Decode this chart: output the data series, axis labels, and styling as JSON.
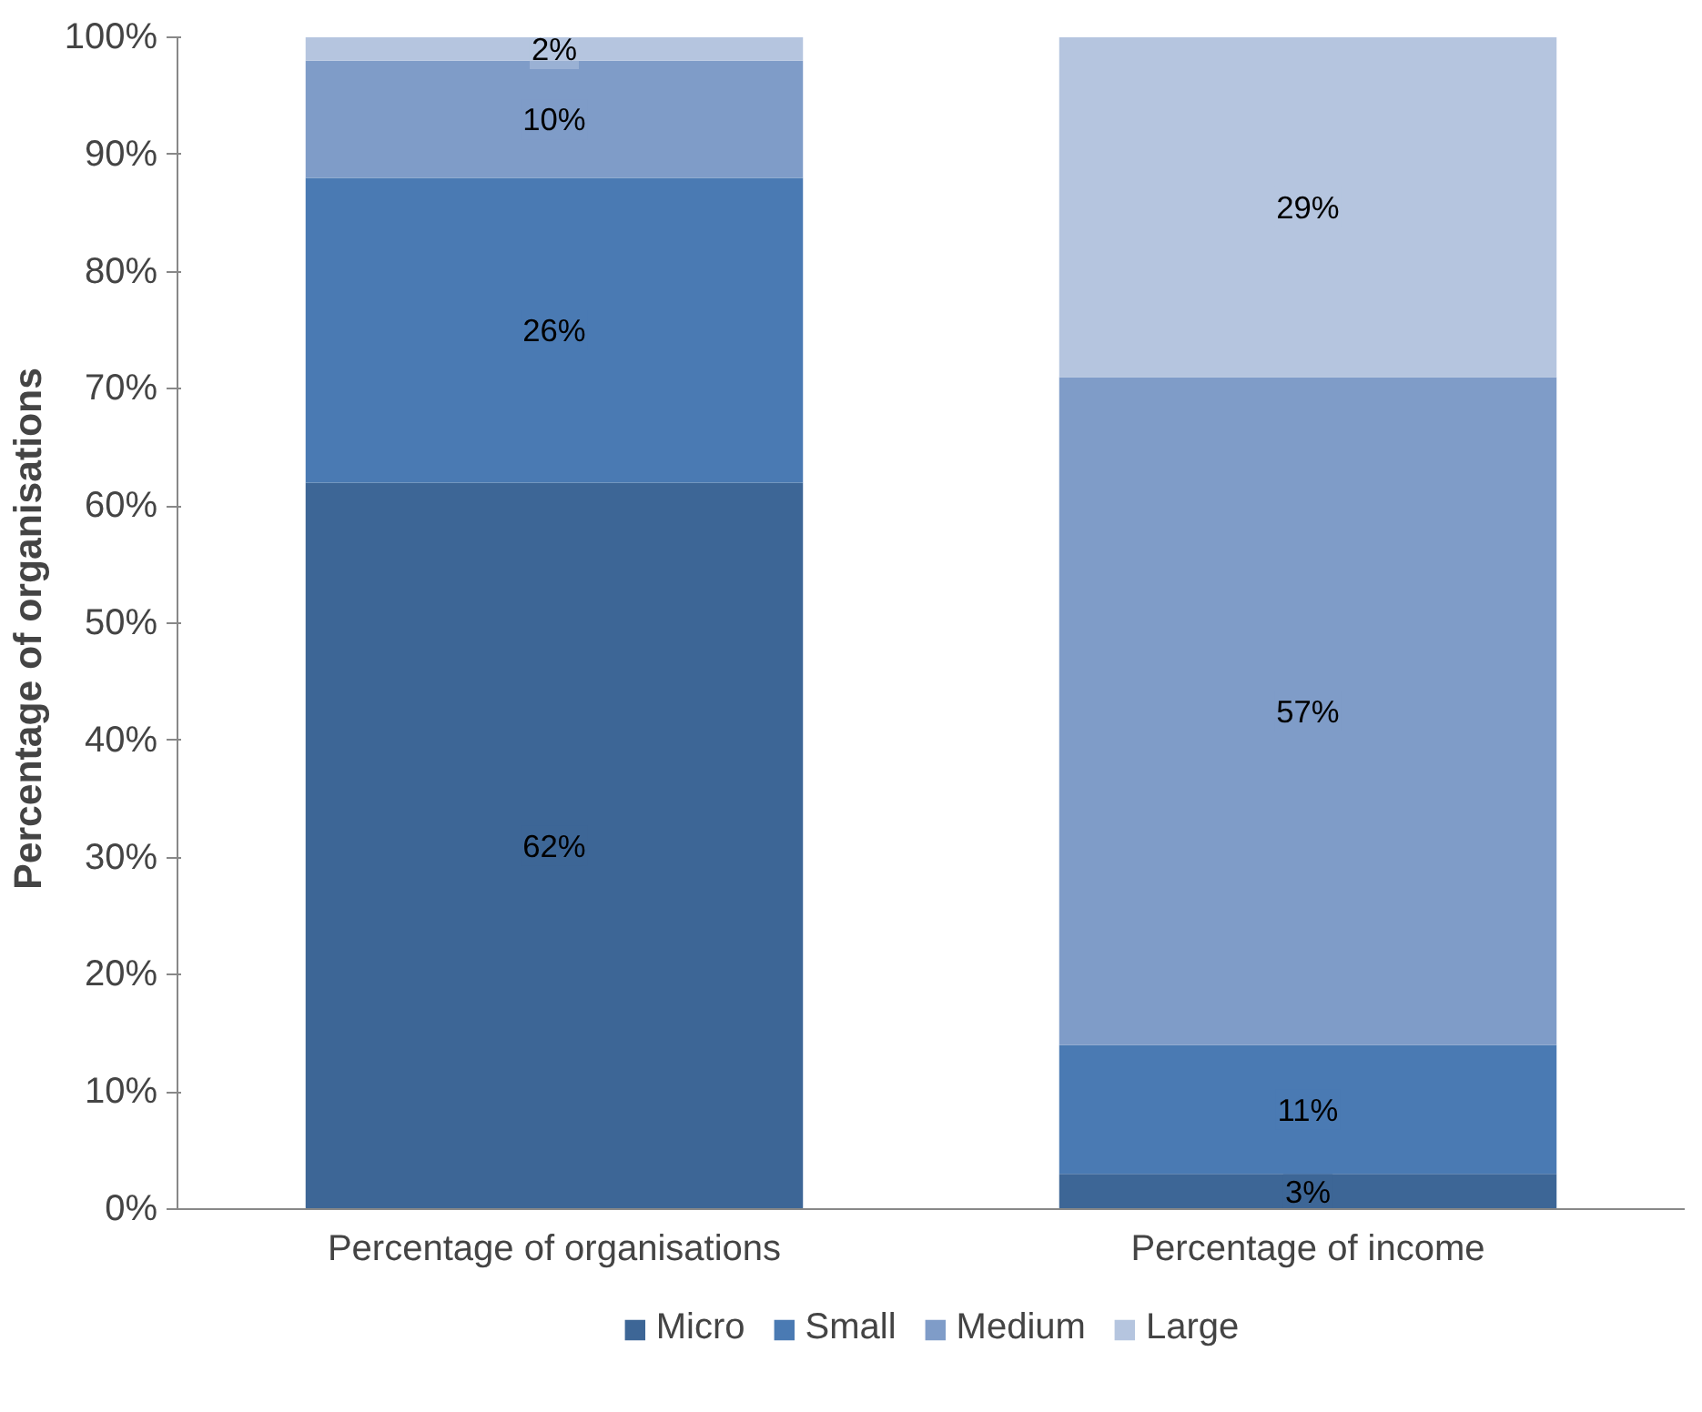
{
  "chart_data": {
    "type": "bar",
    "stacked": true,
    "ylabel": "Percentage  of organisations",
    "categories": [
      "Percentage of organisations",
      "Percentage of income"
    ],
    "series": [
      {
        "name": "Micro",
        "color": "#3d6696",
        "values": [
          62,
          3
        ],
        "value_labels": [
          "62%",
          "3%"
        ]
      },
      {
        "name": "Small",
        "color": "#4a7ab3",
        "values": [
          26,
          11
        ],
        "value_labels": [
          "26%",
          "11%"
        ]
      },
      {
        "name": "Medium",
        "color": "#7f9cc8",
        "values": [
          10,
          57
        ],
        "value_labels": [
          "10%",
          "57%"
        ]
      },
      {
        "name": "Large",
        "color": "#b5c5df",
        "values": [
          2,
          29
        ],
        "value_labels": [
          "2%",
          "29%"
        ]
      }
    ],
    "ylim": [
      0,
      100
    ],
    "yticks": [
      {
        "value": 0,
        "label": "0%"
      },
      {
        "value": 10,
        "label": "10%"
      },
      {
        "value": 20,
        "label": "20%"
      },
      {
        "value": 30,
        "label": "30%"
      },
      {
        "value": 40,
        "label": "40%"
      },
      {
        "value": 50,
        "label": "50%"
      },
      {
        "value": 60,
        "label": "60%"
      },
      {
        "value": 70,
        "label": "70%"
      },
      {
        "value": 80,
        "label": "80%"
      },
      {
        "value": 90,
        "label": "90%"
      },
      {
        "value": 100,
        "label": "100%"
      }
    ],
    "legend": "bottom",
    "grid": false
  }
}
